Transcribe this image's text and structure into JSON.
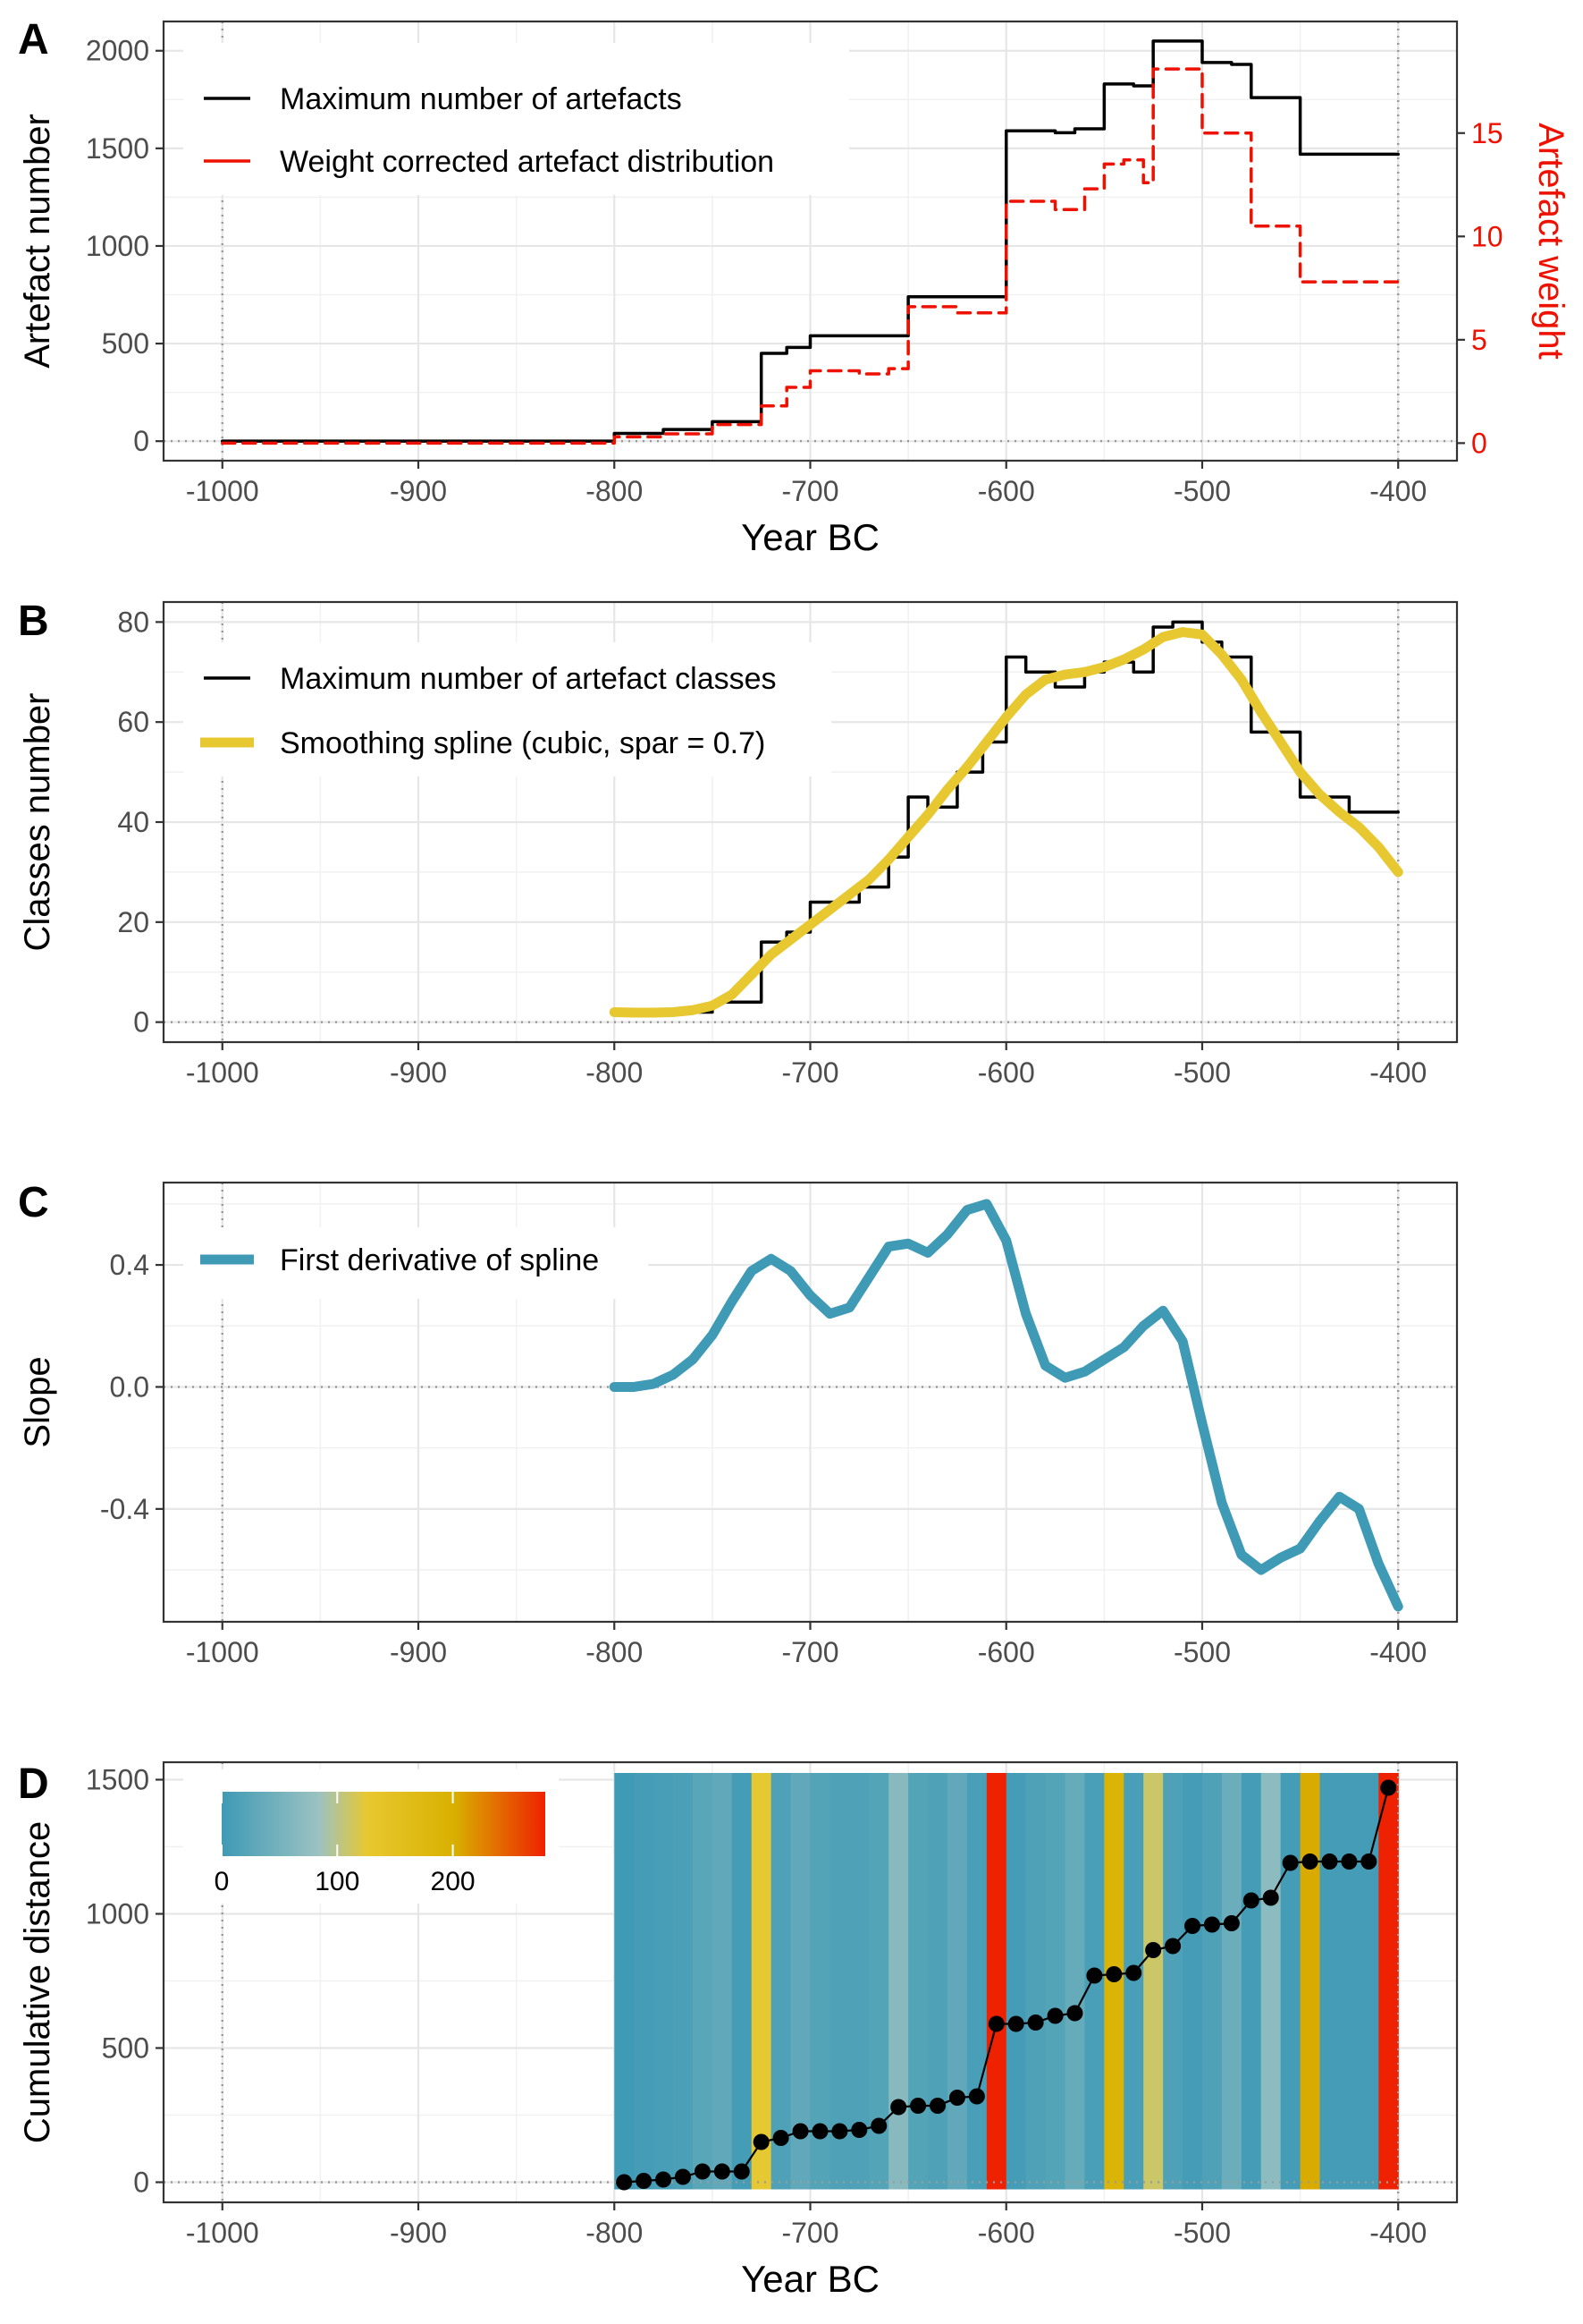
{
  "chart_data": [
    {
      "panel": "A",
      "type": "line",
      "xlabel": "Year BC",
      "ylabel": "Artefact number",
      "y2label": "Artefact weight",
      "xlim": [
        -1030,
        -370
      ],
      "ylim": [
        -100,
        2150
      ],
      "y2lim": [
        -0.85,
        20.4
      ],
      "x_ticks": [
        -1000,
        -900,
        -800,
        -700,
        -600,
        -500,
        -400
      ],
      "x_tick_labels": [
        "-1000",
        "-900",
        "-800",
        "-700",
        "-600",
        "-500",
        "-400"
      ],
      "y_ticks": [
        0,
        500,
        1000,
        1500,
        2000
      ],
      "y_tick_labels": [
        "0",
        "500",
        "1000",
        "1500",
        "2000"
      ],
      "y2_ticks": [
        0,
        5,
        10,
        15
      ],
      "y2_tick_labels": [
        "0",
        "5",
        "10",
        "15"
      ],
      "grid": true,
      "legend_position": "top-left",
      "colors": {
        "max": "#000000",
        "weight": "#ee1100",
        "y2axis": "#ee1100"
      },
      "series": [
        {
          "name": "Maximum number of artefacts",
          "style": "solid-step",
          "x": [
            -1000,
            -800,
            -800,
            -775,
            -775,
            -750,
            -750,
            -725,
            -725,
            -712,
            -712,
            -700,
            -700,
            -650,
            -650,
            -600,
            -600,
            -575,
            -575,
            -565,
            -565,
            -550,
            -550,
            -535,
            -535,
            -525,
            -525,
            -500,
            -500,
            -485,
            -485,
            -475,
            -475,
            -450,
            -450,
            -400
          ],
          "y": [
            0,
            0,
            40,
            40,
            60,
            60,
            100,
            100,
            450,
            450,
            480,
            480,
            540,
            540,
            740,
            740,
            1590,
            1590,
            1580,
            1580,
            1600,
            1600,
            1830,
            1830,
            1820,
            1820,
            2050,
            2050,
            1940,
            1940,
            1930,
            1930,
            1760,
            1760,
            1470,
            1470
          ]
        },
        {
          "name": "Weight corrected artefact distribution",
          "style": "dashed-step",
          "x": [
            -1000,
            -800,
            -800,
            -775,
            -775,
            -750,
            -750,
            -725,
            -725,
            -712,
            -712,
            -700,
            -700,
            -675,
            -675,
            -660,
            -660,
            -650,
            -650,
            -625,
            -625,
            -600,
            -600,
            -575,
            -575,
            -560,
            -560,
            -550,
            -550,
            -540,
            -540,
            -530,
            -530,
            -525,
            -525,
            -500,
            -500,
            -475,
            -475,
            -450,
            -450,
            -400
          ],
          "y": [
            0,
            0,
            0.3,
            0.3,
            0.45,
            0.45,
            0.9,
            0.9,
            1.8,
            1.8,
            2.7,
            2.7,
            3.5,
            3.5,
            3.35,
            3.35,
            3.6,
            3.6,
            6.6,
            6.6,
            6.3,
            6.3,
            11.7,
            11.7,
            11.3,
            11.3,
            12.3,
            12.3,
            13.5,
            13.5,
            13.7,
            13.7,
            12.6,
            12.6,
            18.1,
            18.1,
            15.0,
            15.0,
            10.5,
            10.5,
            7.8,
            7.8
          ]
        }
      ]
    },
    {
      "panel": "B",
      "type": "line",
      "xlabel": "",
      "ylabel": "Classes number",
      "xlim": [
        -1030,
        -370
      ],
      "ylim": [
        -4,
        84
      ],
      "x_ticks": [
        -1000,
        -900,
        -800,
        -700,
        -600,
        -500,
        -400
      ],
      "x_tick_labels": [
        "-1000",
        "-900",
        "-800",
        "-700",
        "-600",
        "-500",
        "-400"
      ],
      "y_ticks": [
        0,
        20,
        40,
        60,
        80
      ],
      "y_tick_labels": [
        "0",
        "20",
        "40",
        "60",
        "80"
      ],
      "grid": true,
      "legend_position": "top-left",
      "colors": {
        "max": "#000000",
        "spline": "#e8c830"
      },
      "series": [
        {
          "name": "Maximum number of artefact classes",
          "style": "solid-step",
          "x": [
            -800,
            -750,
            -750,
            -725,
            -725,
            -712,
            -712,
            -700,
            -700,
            -675,
            -675,
            -660,
            -660,
            -650,
            -650,
            -640,
            -640,
            -625,
            -625,
            -612,
            -612,
            -600,
            -600,
            -590,
            -590,
            -575,
            -575,
            -560,
            -560,
            -550,
            -550,
            -535,
            -535,
            -525,
            -525,
            -515,
            -515,
            -500,
            -500,
            -490,
            -490,
            -475,
            -475,
            -450,
            -450,
            -425,
            -425,
            -400
          ],
          "y": [
            2,
            2,
            4,
            4,
            16,
            16,
            18,
            18,
            24,
            24,
            27,
            27,
            33,
            33,
            45,
            45,
            43,
            43,
            50,
            50,
            56,
            56,
            73,
            73,
            70,
            70,
            67,
            67,
            70,
            70,
            72,
            72,
            70,
            70,
            79,
            79,
            80,
            80,
            76,
            76,
            73,
            73,
            58,
            58,
            45,
            45,
            42,
            42
          ]
        },
        {
          "name": "Smoothing spline (cubic, spar = 0.7)",
          "style": "thick-smooth",
          "x": [
            -800,
            -790,
            -780,
            -770,
            -760,
            -750,
            -740,
            -730,
            -720,
            -710,
            -700,
            -690,
            -680,
            -670,
            -660,
            -650,
            -640,
            -630,
            -620,
            -610,
            -600,
            -590,
            -580,
            -570,
            -560,
            -550,
            -540,
            -530,
            -520,
            -510,
            -500,
            -490,
            -480,
            -470,
            -460,
            -450,
            -440,
            -430,
            -420,
            -410,
            -400
          ],
          "y": [
            2,
            1.9,
            1.9,
            2,
            2.4,
            3.3,
            5.5,
            9.5,
            13.5,
            16.5,
            19.5,
            22.5,
            25.5,
            28.5,
            32.5,
            37,
            41.5,
            46.5,
            51,
            56,
            61,
            65.5,
            68.5,
            69.5,
            70,
            71,
            72.5,
            74.5,
            77,
            78,
            77.5,
            73.5,
            68.5,
            62,
            56,
            50,
            45.5,
            42,
            39,
            35,
            30
          ]
        }
      ]
    },
    {
      "panel": "C",
      "type": "line",
      "xlabel": "",
      "ylabel": "Slope",
      "xlim": [
        -1030,
        -370
      ],
      "ylim": [
        -0.77,
        0.67
      ],
      "x_ticks": [
        -1000,
        -900,
        -800,
        -700,
        -600,
        -500,
        -400
      ],
      "x_tick_labels": [
        "-1000",
        "-900",
        "-800",
        "-700",
        "-600",
        "-500",
        "-400"
      ],
      "y_ticks": [
        -0.4,
        0.0,
        0.4
      ],
      "y_tick_labels": [
        "-0.4",
        "0.0",
        "0.4"
      ],
      "grid": true,
      "legend_position": "top-left",
      "colors": {
        "derivative": "#3e9ab5"
      },
      "series": [
        {
          "name": "First derivative of spline",
          "style": "thick-smooth",
          "x": [
            -800,
            -790,
            -780,
            -770,
            -760,
            -750,
            -740,
            -730,
            -720,
            -710,
            -700,
            -690,
            -680,
            -670,
            -660,
            -650,
            -640,
            -630,
            -620,
            -610,
            -600,
            -590,
            -580,
            -570,
            -560,
            -550,
            -540,
            -530,
            -520,
            -510,
            -500,
            -490,
            -480,
            -470,
            -460,
            -450,
            -440,
            -430,
            -420,
            -410,
            -400
          ],
          "y": [
            0,
            0,
            0.01,
            0.04,
            0.09,
            0.17,
            0.28,
            0.38,
            0.42,
            0.38,
            0.3,
            0.24,
            0.26,
            0.36,
            0.46,
            0.47,
            0.44,
            0.5,
            0.58,
            0.6,
            0.48,
            0.24,
            0.07,
            0.03,
            0.05,
            0.09,
            0.13,
            0.2,
            0.25,
            0.15,
            -0.12,
            -0.38,
            -0.55,
            -0.6,
            -0.56,
            -0.53,
            -0.44,
            -0.36,
            -0.4,
            -0.58,
            -0.72
          ]
        }
      ]
    },
    {
      "panel": "D",
      "type": "scatter",
      "xlabel": "Year BC",
      "ylabel": "Cumulative distance",
      "xlim": [
        -1030,
        -370
      ],
      "ylim": [
        -75,
        1565
      ],
      "x_ticks": [
        -1000,
        -900,
        -800,
        -700,
        -600,
        -500,
        -400
      ],
      "x_tick_labels": [
        "-1000",
        "-900",
        "-800",
        "-700",
        "-600",
        "-500",
        "-400"
      ],
      "y_ticks": [
        0,
        500,
        1000,
        1500
      ],
      "y_tick_labels": [
        "0",
        "500",
        "1000",
        "1500"
      ],
      "grid": true,
      "colorbar": {
        "min": 0,
        "max": 280,
        "ticks": [
          0,
          100,
          200
        ],
        "tick_labels": [
          "0",
          "100",
          "200"
        ],
        "colors": [
          "#3e9ab5",
          "#9cc2c2",
          "#e8c830",
          "#d8b000",
          "#ee2200"
        ],
        "position": "top-left"
      },
      "bands": {
        "x0": [
          -800,
          -790,
          -780,
          -770,
          -760,
          -750,
          -740,
          -730,
          -720,
          -710,
          -700,
          -690,
          -680,
          -670,
          -660,
          -650,
          -640,
          -630,
          -620,
          -610,
          -600,
          -590,
          -580,
          -570,
          -560,
          -550,
          -540,
          -530,
          -520,
          -510,
          -500,
          -490,
          -480,
          -470,
          -460,
          -450,
          -440,
          -430,
          -420,
          -410
        ],
        "value": [
          0,
          5,
          8,
          12,
          25,
          30,
          5,
          125,
          15,
          30,
          20,
          15,
          15,
          20,
          65,
          20,
          15,
          30,
          10,
          280,
          5,
          15,
          20,
          35,
          10,
          190,
          10,
          110,
          15,
          5,
          15,
          40,
          5,
          70,
          5,
          205,
          5,
          5,
          5,
          280
        ]
      },
      "series": [
        {
          "name": "",
          "style": "points-line",
          "x": [
            -795,
            -785,
            -775,
            -765,
            -755,
            -745,
            -735,
            -725,
            -715,
            -705,
            -695,
            -685,
            -675,
            -665,
            -655,
            -645,
            -635,
            -625,
            -615,
            -605,
            -595,
            -585,
            -575,
            -565,
            -555,
            -545,
            -535,
            -525,
            -515,
            -505,
            -495,
            -485,
            -475,
            -465,
            -455,
            -445,
            -435,
            -425,
            -415,
            -405
          ],
          "y": [
            0,
            5,
            10,
            20,
            40,
            40,
            40,
            150,
            165,
            190,
            190,
            190,
            195,
            210,
            280,
            285,
            285,
            315,
            320,
            590,
            590,
            595,
            620,
            630,
            770,
            775,
            780,
            865,
            880,
            955,
            960,
            965,
            1050,
            1060,
            1190,
            1195,
            1195,
            1195,
            1195,
            1470
          ]
        }
      ]
    }
  ],
  "panel_letters": [
    "A",
    "B",
    "C",
    "D"
  ],
  "legend_entries": {
    "a1": "Maximum number of artefacts",
    "a2": "Weight corrected artefact distribution",
    "b1": "Maximum number of artefact classes",
    "b2": "Smoothing spline (cubic, spar = 0.7)",
    "c1": "First derivative of spline"
  }
}
